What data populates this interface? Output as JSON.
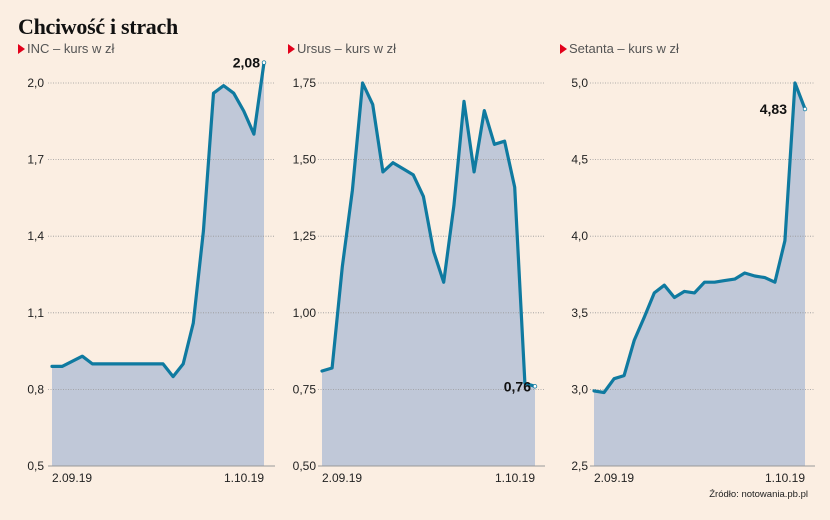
{
  "title": "Chciwość i strach",
  "source": "Źródło: notowania.pb.pl",
  "colors": {
    "line": "#0f7aa0",
    "fill": "#c0c8d8",
    "background": "#fbeee2",
    "marker": "#e2001a"
  },
  "chart_data": [
    {
      "type": "area",
      "title": "INC – kurs w zł",
      "x_labels": [
        "2.09.19",
        "1.10.19"
      ],
      "yticks": [
        "2,0",
        "1,7",
        "1,4",
        "1,1",
        "0,8",
        "0,5"
      ],
      "ytick_values": [
        2.0,
        1.7,
        1.4,
        1.1,
        0.8,
        0.5
      ],
      "ylim": [
        0.5,
        2.0
      ],
      "annotation": "2,08",
      "values": [
        0.89,
        0.89,
        0.91,
        0.93,
        0.9,
        0.9,
        0.9,
        0.9,
        0.9,
        0.9,
        0.9,
        0.9,
        0.85,
        0.9,
        1.06,
        1.42,
        1.96,
        1.99,
        1.96,
        1.89,
        1.8,
        2.08
      ]
    },
    {
      "type": "area",
      "title": "Ursus – kurs w zł",
      "x_labels": [
        "2.09.19",
        "1.10.19"
      ],
      "yticks": [
        "1,75",
        "1,50",
        "1,25",
        "1,00",
        "0,75",
        "0,50"
      ],
      "ytick_values": [
        1.75,
        1.5,
        1.25,
        1.0,
        0.75,
        0.5
      ],
      "ylim": [
        0.5,
        1.75
      ],
      "annotation": "0,76",
      "values": [
        0.81,
        0.82,
        1.15,
        1.4,
        1.75,
        1.68,
        1.46,
        1.49,
        1.47,
        1.45,
        1.38,
        1.2,
        1.1,
        1.35,
        1.69,
        1.46,
        1.66,
        1.55,
        1.56,
        1.41,
        0.77,
        0.76
      ]
    },
    {
      "type": "area",
      "title": "Setanta – kurs w zł",
      "x_labels": [
        "2.09.19",
        "1.10.19"
      ],
      "yticks": [
        "5,0",
        "4,5",
        "4,0",
        "3,5",
        "3,0",
        "2,5"
      ],
      "ytick_values": [
        5.0,
        4.5,
        4.0,
        3.5,
        3.0,
        2.5
      ],
      "ylim": [
        2.5,
        5.0
      ],
      "annotation": "4,83",
      "values": [
        2.99,
        2.98,
        3.07,
        3.09,
        3.32,
        3.47,
        3.63,
        3.68,
        3.6,
        3.64,
        3.63,
        3.7,
        3.7,
        3.71,
        3.72,
        3.76,
        3.74,
        3.73,
        3.7,
        3.97,
        5.0,
        4.83
      ]
    }
  ]
}
